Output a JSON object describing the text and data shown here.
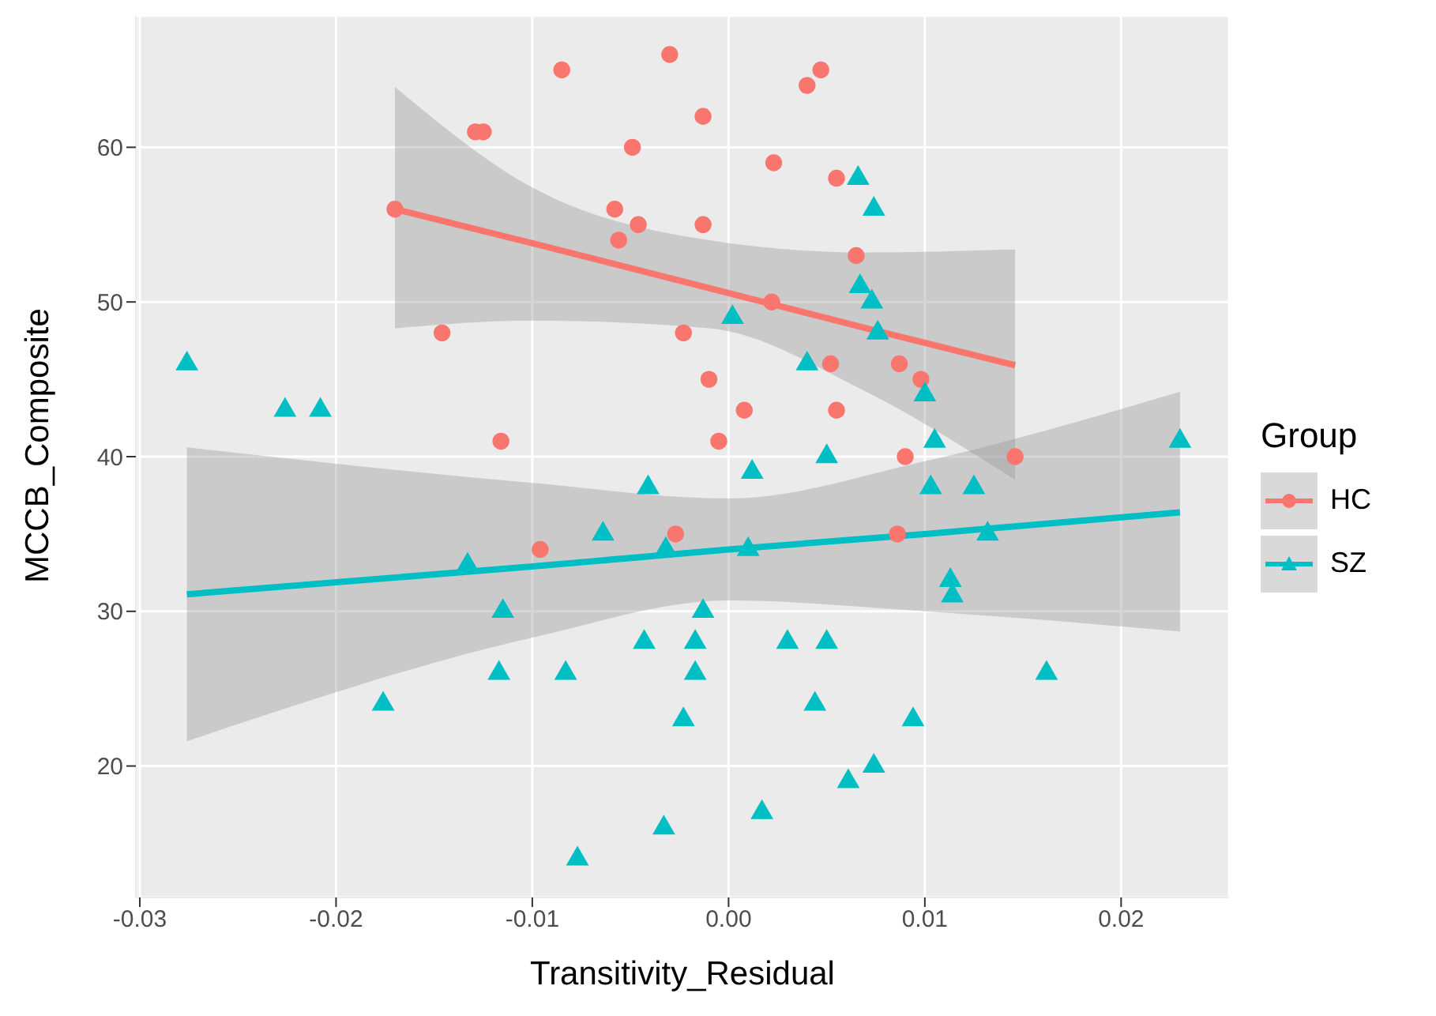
{
  "chart_data": {
    "type": "scatter",
    "xlabel": "Transitivity_Residual",
    "ylabel": "MCCB_Composite",
    "legend_title": "Group",
    "legend": "right",
    "grid": true,
    "xlim": [
      -0.0302,
      0.0255
    ],
    "ylim": [
      11.5,
      68.5
    ],
    "xticks": [
      -0.03,
      -0.02,
      -0.01,
      {
        "value": 0,
        "label": "0.00"
      },
      0.01,
      0.02
    ],
    "yticks": [
      20,
      30,
      40,
      50,
      60
    ],
    "series": [
      {
        "name": "HC",
        "marker": "circle",
        "color": "#f8766d",
        "x": [
          -0.0085,
          -0.003,
          0.0047,
          0.004,
          -0.0013,
          -0.0129,
          -0.0125,
          -0.0049,
          0.0023,
          0.0055,
          -0.017,
          -0.0058,
          -0.0046,
          -0.0013,
          -0.0056,
          0.0065,
          0.0022,
          -0.0146,
          -0.0023,
          0.0052,
          0.0087,
          0.0098,
          -0.001,
          0.0008,
          0.0055,
          -0.0005,
          -0.0116,
          0.009,
          0.0146,
          -0.0027,
          0.0086,
          -0.0096
        ],
        "values": [
          65,
          66,
          65,
          64,
          62,
          61,
          61,
          60,
          59,
          58,
          56,
          56,
          55,
          55,
          54,
          53,
          50,
          48,
          48,
          46,
          46,
          45,
          45,
          43,
          43,
          41,
          41,
          40,
          40,
          35,
          35,
          34
        ]
      },
      {
        "name": "SZ",
        "marker": "triangle",
        "color": "#00bfc4",
        "x": [
          -0.0276,
          -0.0226,
          -0.0208,
          0.0066,
          0.0074,
          0.0067,
          0.0073,
          0.0076,
          0.0002,
          0.004,
          0.01,
          0.0105,
          0.023,
          0.005,
          0.0012,
          0.0103,
          0.0125,
          0.001,
          0.0132,
          0.0113,
          0.0114,
          -0.0013,
          0.003,
          0.005,
          0.0162,
          0.0044,
          0.0094,
          0.0074,
          0.0061,
          0.0017,
          -0.0041,
          -0.0064,
          -0.0133,
          -0.0032,
          -0.0115,
          -0.0043,
          -0.0017,
          -0.0117,
          -0.0083,
          -0.0017,
          -0.0176,
          -0.0023,
          -0.0033,
          -0.0077
        ],
        "values": [
          46,
          43,
          43,
          58,
          56,
          51,
          50,
          48,
          49,
          46,
          44,
          41,
          41,
          40,
          39,
          38,
          38,
          34,
          35,
          32,
          31,
          30,
          28,
          28,
          26,
          24,
          23,
          20,
          19,
          17,
          38,
          35,
          33,
          34,
          30,
          28,
          28,
          26,
          26,
          26,
          24,
          23,
          16,
          14
        ]
      },
      {
        "type": "line",
        "color": "#f8766d",
        "x": [
          -0.017,
          -0.01,
          -0.001,
          0.007,
          0.0146
        ],
        "values": [
          56.0,
          53.8,
          50.9,
          48.3,
          45.9
        ],
        "lower": [
          48.3,
          48.8,
          48.3,
          44.2,
          38.5
        ],
        "upper": [
          63.9,
          57.4,
          54.0,
          53.2,
          53.4
        ]
      },
      {
        "type": "line",
        "color": "#00bfc4",
        "x": [
          -0.0276,
          -0.01,
          0,
          0.01,
          0.023
        ],
        "values": [
          31.1,
          32.9,
          34.0,
          35.0,
          36.4
        ],
        "lower": [
          21.6,
          28.3,
          30.7,
          30.0,
          28.7
        ],
        "upper": [
          40.6,
          38.3,
          37.3,
          39.7,
          44.2
        ]
      }
    ]
  }
}
